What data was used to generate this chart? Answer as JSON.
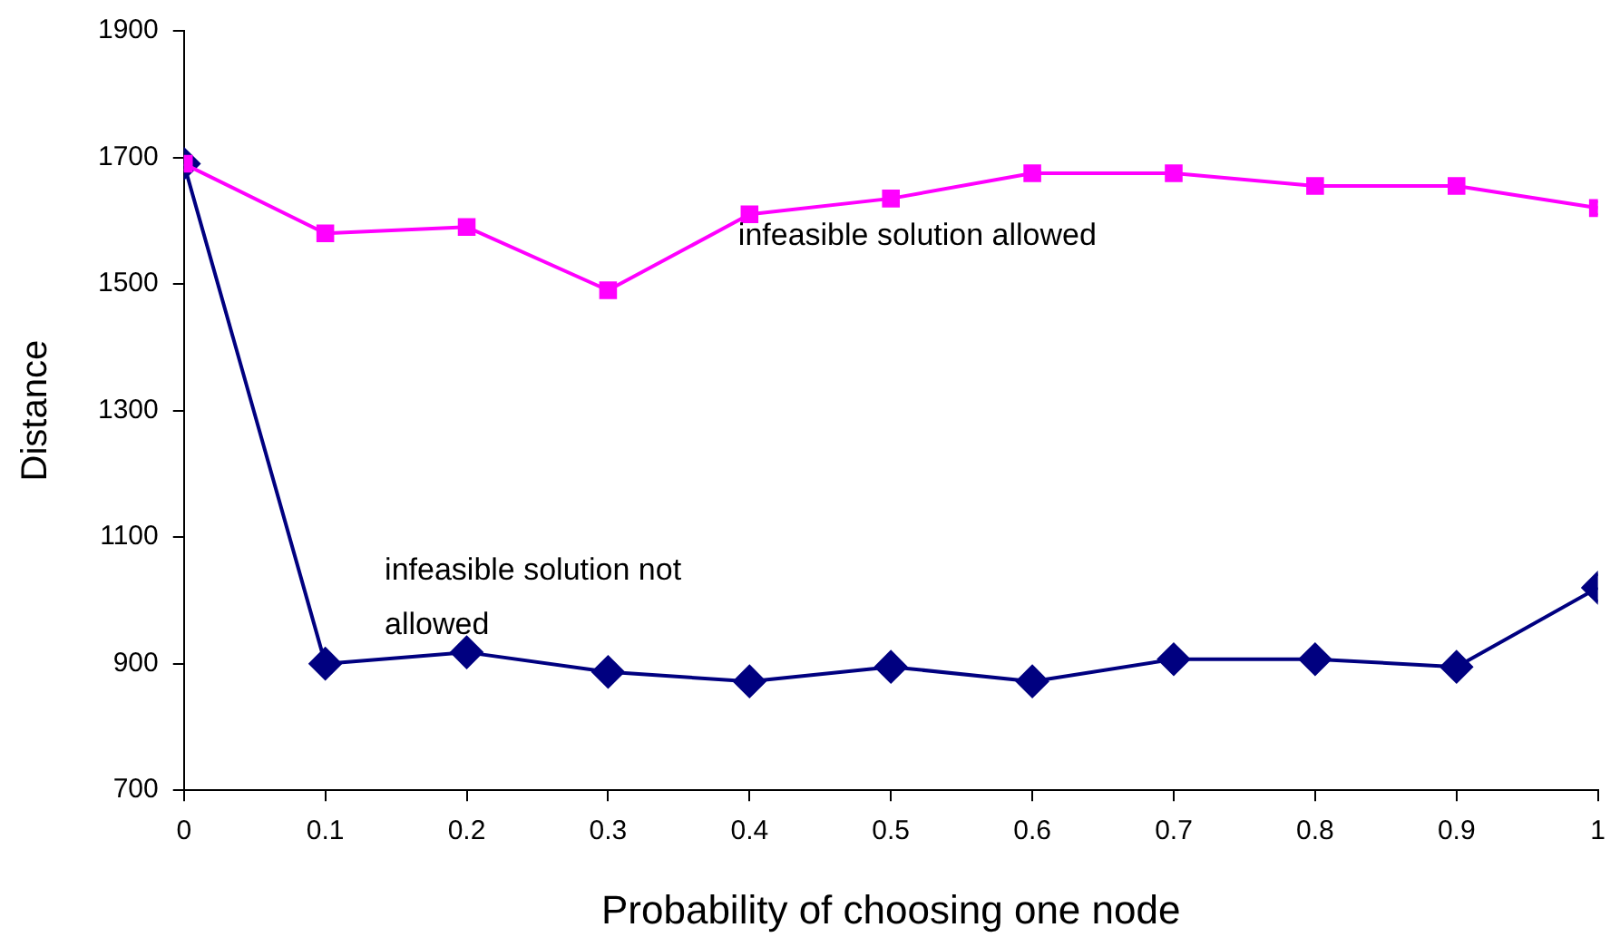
{
  "chart_data": {
    "type": "line",
    "xlabel": "Probability of choosing one node",
    "ylabel": "Distance",
    "x": [
      0,
      0.1,
      0.2,
      0.3,
      0.4,
      0.5,
      0.6,
      0.7,
      0.8,
      0.9,
      1
    ],
    "series": [
      {
        "name": "infeasible solution allowed",
        "color": "#ff00ff",
        "marker": "square",
        "values": [
          1690,
          1580,
          1590,
          1490,
          1610,
          1635,
          1675,
          1675,
          1655,
          1655,
          1620
        ]
      },
      {
        "name": "infeasible solution not allowed",
        "color": "#000080",
        "marker": "diamond",
        "values": [
          1690,
          900,
          918,
          887,
          872,
          895,
          872,
          907,
          907,
          895,
          1020
        ]
      }
    ],
    "xlim": [
      0,
      1
    ],
    "xticks": [
      0,
      0.1,
      0.2,
      0.3,
      0.4,
      0.5,
      0.6,
      0.7,
      0.8,
      0.9,
      1
    ],
    "ylim": [
      700,
      1900
    ],
    "yticks": [
      700,
      900,
      1100,
      1300,
      1500,
      1700,
      1900
    ],
    "grid": false,
    "legend": false,
    "line_style": "solid"
  }
}
